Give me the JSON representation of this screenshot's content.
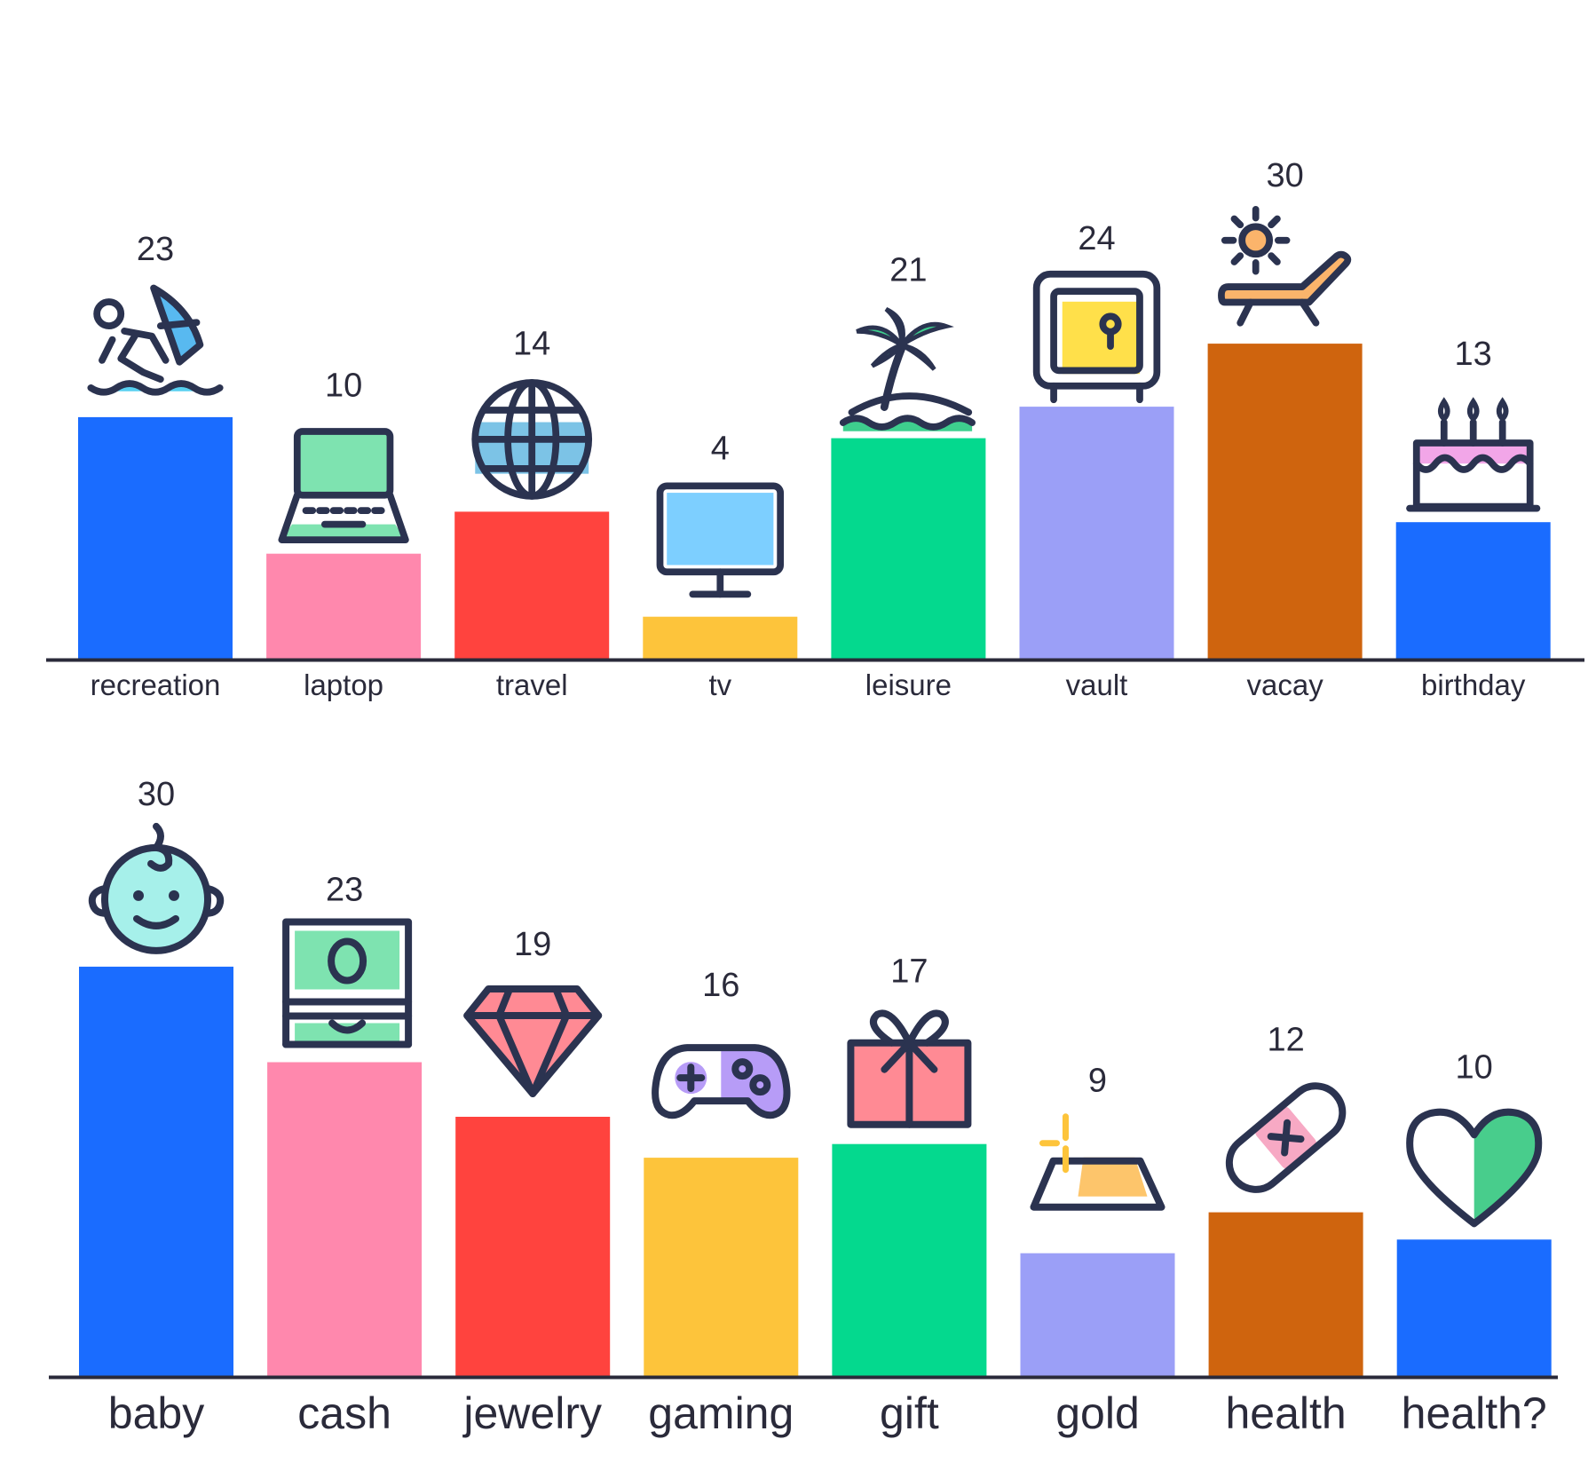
{
  "chart_data": [
    {
      "type": "bar",
      "categories": [
        "recreation",
        "laptop",
        "travel",
        "tv",
        "leisure",
        "vault",
        "vacay",
        "birthday"
      ],
      "values": [
        23,
        10,
        14,
        4,
        21,
        24,
        30,
        13
      ],
      "colors": [
        "#1a6cff",
        "#ff88ad",
        "#ff433e",
        "#fdc43b",
        "#04d98e",
        "#9b9ff7",
        "#cf640e",
        "#1a6cff"
      ],
      "icons": [
        "windsurf-icon",
        "laptop-icon",
        "globe-icon",
        "tv-icon",
        "palm-island-icon",
        "safe-icon",
        "sunbed-icon",
        "cake-icon"
      ],
      "ylim": [
        0,
        30
      ],
      "grid": false
    },
    {
      "type": "bar",
      "categories": [
        "baby",
        "cash",
        "jewelry",
        "gaming",
        "gift",
        "gold",
        "health",
        "health?"
      ],
      "values": [
        30,
        23,
        19,
        16,
        17,
        9,
        12,
        10
      ],
      "colors": [
        "#1a6cff",
        "#ff88ad",
        "#ff433e",
        "#fdc43b",
        "#04d98e",
        "#9b9ff7",
        "#cf640e",
        "#1a6cff"
      ],
      "icons": [
        "baby-face-icon",
        "cash-stack-icon",
        "diamond-icon",
        "gamepad-icon",
        "gift-box-icon",
        "gold-bar-icon",
        "bandage-icon",
        "heart-icon"
      ],
      "ylim": [
        0,
        30
      ],
      "grid": false
    }
  ]
}
